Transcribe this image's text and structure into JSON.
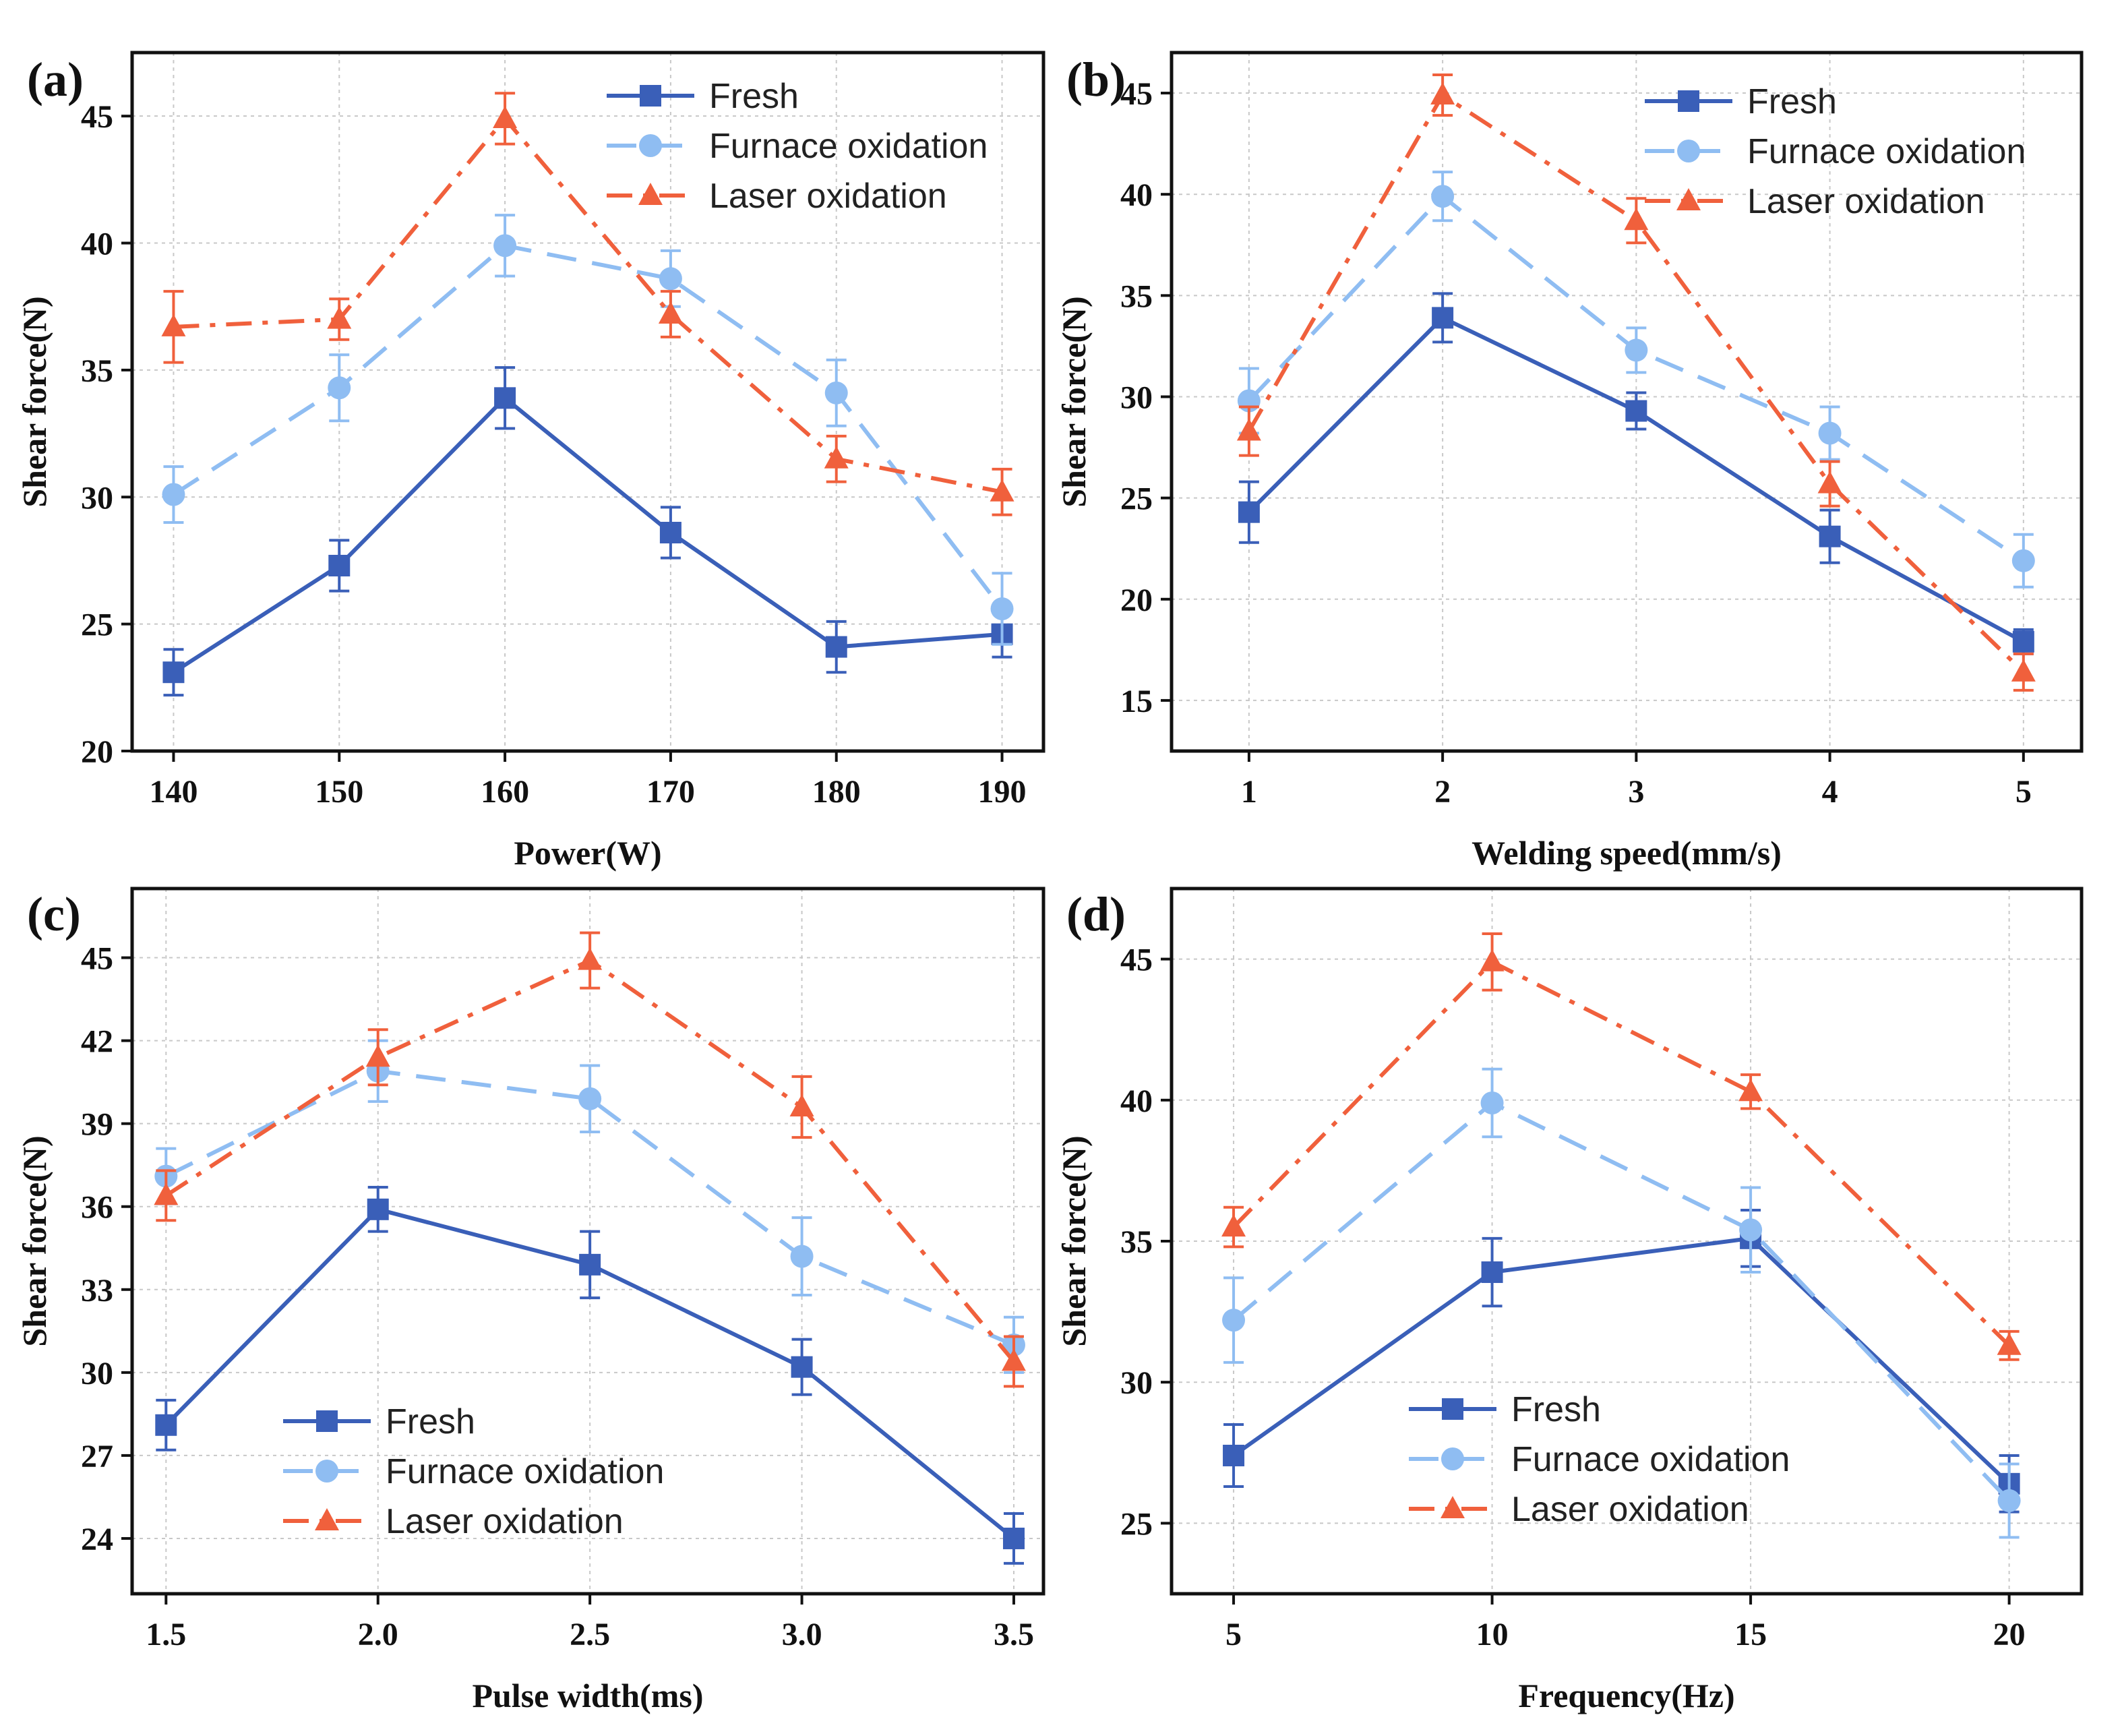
{
  "colors": {
    "fresh": "#3a5fb8",
    "furnace": "#8fbdf2",
    "laser": "#f0603c",
    "grid": "#c8c8c8",
    "axis": "#111111"
  },
  "chart_data": [
    {
      "type": "line",
      "panel": "(a)",
      "xlabel": "Power(W)",
      "ylabel": "Shear force(N)",
      "categories": [
        "140",
        "150",
        "160",
        "170",
        "180",
        "190"
      ],
      "x": [
        140,
        150,
        160,
        170,
        180,
        190
      ],
      "xlim": [
        137.5,
        192.5
      ],
      "ylim": [
        20,
        47.5
      ],
      "yticks": [
        20,
        25,
        30,
        35,
        40,
        45
      ],
      "legend_position": "top-right",
      "grid": true,
      "series": [
        {
          "name": "Fresh",
          "key": "fresh",
          "values": [
            23.1,
            27.3,
            33.9,
            28.6,
            24.1,
            24.6
          ],
          "errors": [
            0.9,
            1.0,
            1.2,
            1.0,
            1.0,
            0.9
          ]
        },
        {
          "name": "Furnace oxidation",
          "key": "furnace",
          "values": [
            30.1,
            34.3,
            39.9,
            38.6,
            34.1,
            25.6
          ],
          "errors": [
            1.1,
            1.3,
            1.2,
            1.1,
            1.3,
            1.4
          ]
        },
        {
          "name": "Laser oxidation",
          "key": "laser",
          "values": [
            36.7,
            37.0,
            44.9,
            37.2,
            31.5,
            30.2
          ],
          "errors": [
            1.4,
            0.8,
            1.0,
            0.9,
            0.9,
            0.9
          ]
        }
      ]
    },
    {
      "type": "line",
      "panel": "(b)",
      "xlabel": "Welding speed(mm/s)",
      "ylabel": "Shear force(N)",
      "categories": [
        "1",
        "2",
        "3",
        "4",
        "5"
      ],
      "x": [
        1,
        2,
        3,
        4,
        5
      ],
      "xlim": [
        0.6,
        5.3
      ],
      "ylim": [
        12.5,
        47
      ],
      "yticks": [
        15,
        20,
        25,
        30,
        35,
        40,
        45
      ],
      "legend_position": "top-right",
      "grid": true,
      "series": [
        {
          "name": "Fresh",
          "key": "fresh",
          "values": [
            24.3,
            33.9,
            29.3,
            23.1,
            17.9
          ],
          "errors": [
            1.5,
            1.2,
            0.9,
            1.3,
            0.6
          ]
        },
        {
          "name": "Furnace oxidation",
          "key": "furnace",
          "values": [
            29.8,
            39.9,
            32.3,
            28.2,
            21.9
          ],
          "errors": [
            1.6,
            1.2,
            1.1,
            1.3,
            1.3
          ]
        },
        {
          "name": "Laser oxidation",
          "key": "laser",
          "values": [
            28.3,
            44.9,
            38.7,
            25.7,
            16.4
          ],
          "errors": [
            1.2,
            1.0,
            1.1,
            1.1,
            0.9
          ]
        }
      ]
    },
    {
      "type": "line",
      "panel": "(c)",
      "xlabel": "Pulse width(ms)",
      "ylabel": "Shear force(N)",
      "categories": [
        "1.5",
        "2.0",
        "2.5",
        "3.0",
        "3.5"
      ],
      "x": [
        1.5,
        2.0,
        2.5,
        3.0,
        3.5
      ],
      "xlim": [
        1.42,
        3.57
      ],
      "ylim": [
        22,
        47.5
      ],
      "yticks": [
        24,
        27,
        30,
        33,
        36,
        39,
        42,
        45
      ],
      "legend_position": "bottom-left",
      "grid": true,
      "series": [
        {
          "name": "Fresh",
          "key": "fresh",
          "values": [
            28.1,
            35.9,
            33.9,
            30.2,
            24.0
          ],
          "errors": [
            0.9,
            0.8,
            1.2,
            1.0,
            0.9
          ]
        },
        {
          "name": "Furnace oxidation",
          "key": "furnace",
          "values": [
            37.1,
            40.9,
            39.9,
            34.2,
            31.0
          ],
          "errors": [
            1.0,
            1.1,
            1.2,
            1.4,
            1.0
          ]
        },
        {
          "name": "Laser oxidation",
          "key": "laser",
          "values": [
            36.4,
            41.4,
            44.9,
            39.6,
            30.4
          ],
          "errors": [
            0.9,
            1.0,
            1.0,
            1.1,
            0.9
          ]
        }
      ]
    },
    {
      "type": "line",
      "panel": "(d)",
      "xlabel": "Frequency(Hz)",
      "ylabel": "Shear force(N)",
      "categories": [
        "5",
        "10",
        "15",
        "20"
      ],
      "x": [
        5,
        10,
        15,
        20
      ],
      "xlim": [
        3.8,
        21.4
      ],
      "ylim": [
        22.5,
        47.5
      ],
      "yticks": [
        25,
        30,
        35,
        40,
        45
      ],
      "legend_position": "bottom-center",
      "grid": true,
      "series": [
        {
          "name": "Fresh",
          "key": "fresh",
          "values": [
            27.4,
            33.9,
            35.1,
            26.4
          ],
          "errors": [
            1.1,
            1.2,
            1.0,
            1.0
          ]
        },
        {
          "name": "Furnace oxidation",
          "key": "furnace",
          "values": [
            32.2,
            39.9,
            35.4,
            25.8
          ],
          "errors": [
            1.5,
            1.2,
            1.5,
            1.3
          ]
        },
        {
          "name": "Laser oxidation",
          "key": "laser",
          "values": [
            35.5,
            44.9,
            40.3,
            31.3
          ],
          "errors": [
            0.7,
            1.0,
            0.6,
            0.5
          ]
        }
      ]
    }
  ]
}
